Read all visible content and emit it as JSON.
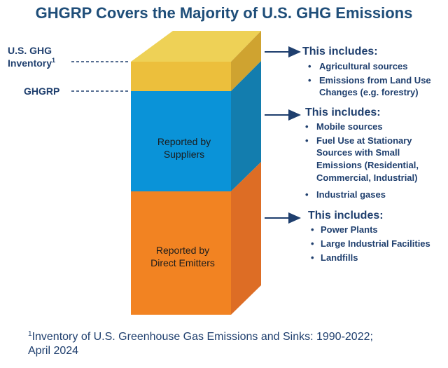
{
  "title": "GHGRP Covers the Majority of U.S. GHG Emissions",
  "left_labels": {
    "inventory_line1": "U.S. GHG",
    "inventory_line2": "Inventory",
    "inventory_sup": "1",
    "ghgrp": "GHGRP"
  },
  "blocks": {
    "suppliers": [
      "Reported by",
      "Suppliers"
    ],
    "emitters": [
      "Reported by",
      "Direct Emitters"
    ]
  },
  "colors": {
    "yellow": "#ECBF3C",
    "blue": "#0A93D8",
    "orange": "#F28322",
    "navy": "#1F3F6E"
  },
  "callouts": [
    {
      "heading": "This includes:",
      "bullets": [
        [
          "Agricultural sources"
        ],
        [
          "Emissions from Land Use",
          "Changes (e.g. forestry)"
        ]
      ]
    },
    {
      "heading": "This includes:",
      "bullets": [
        [
          "Mobile sources"
        ],
        [
          "Fuel Use at Stationary",
          "Sources with Small",
          "Emissions (Residential,",
          "Commercial, Industrial)"
        ],
        [
          "Industrial gases"
        ]
      ]
    },
    {
      "heading": "This includes:",
      "bullets": [
        [
          "Power Plants"
        ],
        [
          "Large Industrial Facilities"
        ],
        [
          "Landfills"
        ]
      ]
    }
  ],
  "footnote": {
    "sup": "1",
    "line1": "Inventory of U.S. Greenhouse Gas Emissions and Sinks: 1990-2022;",
    "line2": "April 2024"
  }
}
